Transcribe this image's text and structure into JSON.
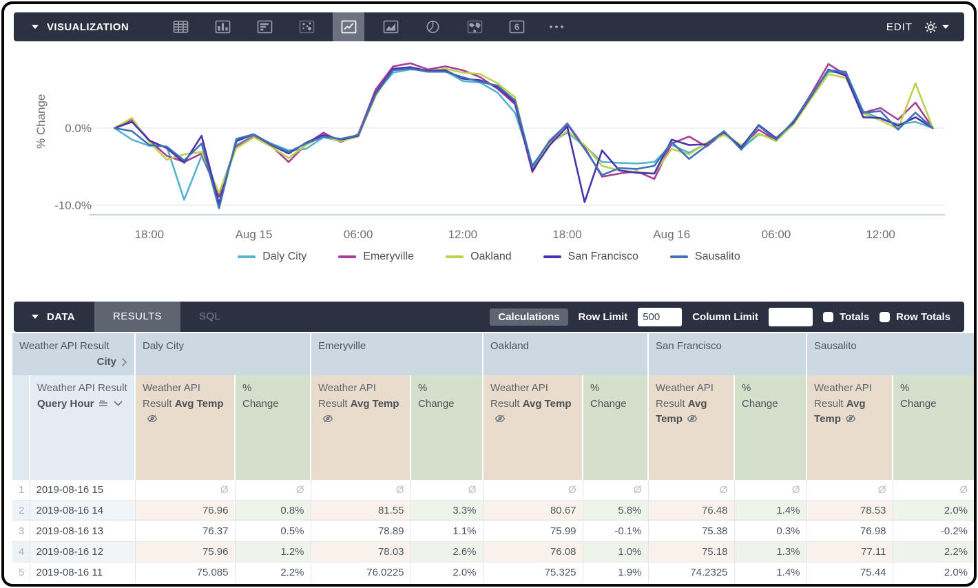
{
  "viz_bar": {
    "title": "VISUALIZATION",
    "edit_label": "EDIT",
    "icons": [
      "table",
      "column-chart",
      "bar-chart",
      "scatter",
      "line-chart",
      "area-chart",
      "pie-chart",
      "map",
      "single-value",
      "more-options"
    ],
    "selected_icon": "line-chart"
  },
  "chart_data": {
    "type": "line",
    "ylabel": "% Change",
    "yticks": [
      {
        "label": "0.0%",
        "value": 0
      },
      {
        "label": "-10.0%",
        "value": -10
      }
    ],
    "ylim": [
      -11.5,
      9.5
    ],
    "x_axis": "hourly from Aug 14 16:00 to Aug 16 15:00",
    "x_tick_labels": [
      "18:00",
      "Aug 15",
      "06:00",
      "12:00",
      "18:00",
      "Aug 16",
      "06:00",
      "12:00"
    ],
    "x_tick_hours": [
      3,
      9,
      15,
      21,
      27,
      33,
      39,
      45
    ],
    "legend_position": "bottom",
    "grid": true,
    "series": [
      {
        "name": "Daly City",
        "color": "#54b2d3",
        "values": [
          0,
          -1.5,
          -2.3,
          -2.4,
          -9.3,
          -3.6,
          -8.5,
          -2.2,
          -1.0,
          -2.0,
          -2.9,
          -2.7,
          -1.2,
          -1.7,
          -0.9,
          4.5,
          7.2,
          7.6,
          7.5,
          7.4,
          6.1,
          5.9,
          4.6,
          2.0,
          -4.8,
          -1.9,
          -0.6,
          -2.3,
          -4.4,
          -4.5,
          -4.6,
          -4.4,
          -2.2,
          -3.2,
          -2.0,
          -0.4,
          -2.7,
          -0.8,
          -1.4,
          0.6,
          4.0,
          7.3,
          7.2,
          2.2,
          1.2,
          0.5,
          0.8,
          0
        ]
      },
      {
        "name": "Emeryville",
        "color": "#a63d98",
        "values": [
          0,
          1.1,
          -1.6,
          -3.6,
          -4.4,
          -3.3,
          -8.9,
          -2.4,
          -1.1,
          -2.3,
          -4.4,
          -2.1,
          -0.6,
          -1.8,
          -0.8,
          5.0,
          8.0,
          8.4,
          7.6,
          8.0,
          7.5,
          6.6,
          5.1,
          3.1,
          -5.7,
          -1.8,
          0.6,
          -2.5,
          -6.3,
          -5.9,
          -5.6,
          -6.6,
          -2.0,
          -1.1,
          -2.4,
          -0.6,
          -2.4,
          -0.2,
          -1.6,
          0.8,
          4.4,
          8.3,
          6.9,
          2.0,
          2.6,
          1.1,
          3.3,
          0
        ]
      },
      {
        "name": "Oakland",
        "color": "#bdd14c",
        "values": [
          0,
          1.3,
          -1.8,
          -4.1,
          -3.4,
          -3.1,
          -8.4,
          -2.6,
          -1.2,
          -2.4,
          -3.9,
          -2.2,
          -1.0,
          -1.7,
          -1.1,
          4.2,
          7.6,
          7.8,
          7.4,
          7.7,
          7.2,
          7.0,
          5.8,
          4.0,
          -5.4,
          -2.0,
          -0.4,
          -2.2,
          -4.9,
          -5.5,
          -5.7,
          -5.9,
          -2.7,
          -3.4,
          -1.9,
          -0.9,
          -2.2,
          -0.7,
          -1.7,
          0.5,
          3.8,
          7.0,
          6.5,
          1.9,
          1.0,
          -0.1,
          5.8,
          0
        ]
      },
      {
        "name": "San Francisco",
        "color": "#4633af",
        "values": [
          0,
          0.8,
          -1.6,
          -2.6,
          -4.5,
          -1.0,
          -9.8,
          -1.7,
          -0.8,
          -2.2,
          -3.3,
          -1.9,
          -0.9,
          -1.5,
          -1.0,
          4.6,
          7.7,
          7.9,
          7.4,
          7.5,
          6.4,
          6.2,
          5.3,
          3.3,
          -5.5,
          -2.2,
          0.2,
          -9.6,
          -2.9,
          -5.5,
          -5.8,
          -5.9,
          -1.5,
          -2.2,
          -2.1,
          -0.5,
          -2.5,
          0.4,
          -1.3,
          0.7,
          4.1,
          7.6,
          6.8,
          1.4,
          1.3,
          0.3,
          1.4,
          0
        ]
      },
      {
        "name": "Sausalito",
        "color": "#3f72b4",
        "values": [
          0,
          -0.4,
          -2.2,
          -2.4,
          -4.2,
          -2.0,
          -10.4,
          -1.4,
          -0.8,
          -2.1,
          -3.1,
          -2.0,
          -1.1,
          -1.4,
          -0.9,
          4.4,
          7.5,
          7.7,
          7.3,
          7.3,
          6.6,
          6.0,
          5.5,
          3.6,
          -5.0,
          -1.6,
          0.5,
          -2.7,
          -6.1,
          -5.2,
          -5.3,
          -4.9,
          -1.8,
          -4.0,
          -2.3,
          -0.4,
          -2.8,
          0.3,
          -1.5,
          0.9,
          4.2,
          7.5,
          7.3,
          2.0,
          2.2,
          -0.2,
          2.0,
          0
        ]
      }
    ]
  },
  "data_bar": {
    "title": "DATA",
    "tabs": [
      {
        "label": "RESULTS",
        "active": true
      },
      {
        "label": "SQL",
        "active": false
      }
    ],
    "calculations_label": "Calculations",
    "row_limit_label": "Row Limit",
    "row_limit_value": "500",
    "column_limit_label": "Column Limit",
    "column_limit_value": "",
    "totals_label": "Totals",
    "row_totals_label": "Row Totals"
  },
  "table": {
    "corner": {
      "prefix": "Weather API Result",
      "field": "City"
    },
    "cities": [
      "Daly City",
      "Emeryville",
      "Oakland",
      "San Francisco",
      "Sausalito"
    ],
    "hour_header": {
      "prefix": "Weather API Result",
      "field": "Query Hour"
    },
    "measure_header": {
      "prefix": "Weather API Result",
      "field": "Avg Temp"
    },
    "change_header": {
      "line1": "%",
      "line2": "Change"
    },
    "null_symbol": "Ø",
    "rows": [
      {
        "num": "1",
        "hour": "2019-08-16 15",
        "cells": [
          null,
          null,
          null,
          null,
          null,
          null,
          null,
          null,
          null,
          null
        ]
      },
      {
        "num": "2",
        "hour": "2019-08-16 14",
        "cells": [
          "76.96",
          "0.8%",
          "81.55",
          "3.3%",
          "80.67",
          "5.8%",
          "76.48",
          "1.4%",
          "78.53",
          "2.0%"
        ]
      },
      {
        "num": "3",
        "hour": "2019-08-16 13",
        "cells": [
          "76.37",
          "0.5%",
          "78.89",
          "1.1%",
          "75.99",
          "-0.1%",
          "75.38",
          "0.3%",
          "76.98",
          "-0.2%"
        ]
      },
      {
        "num": "4",
        "hour": "2019-08-16 12",
        "cells": [
          "75.96",
          "1.2%",
          "78.03",
          "2.6%",
          "76.08",
          "1.0%",
          "75.18",
          "1.3%",
          "77.11",
          "2.2%"
        ]
      },
      {
        "num": "5",
        "hour": "2019-08-16 11",
        "cells": [
          "75.085",
          "2.2%",
          "76.0225",
          "2.0%",
          "75.325",
          "1.9%",
          "74.2325",
          "1.4%",
          "75.44",
          "2.0%"
        ]
      }
    ]
  },
  "colors": {
    "bar_background": "#2b3140",
    "tab_active": "#5d6571",
    "group_header": "#ccd8e2",
    "dimension_header": "#e3ecf2",
    "measure_header": "#e9dccd",
    "calc_header": "#d3e1cc"
  }
}
